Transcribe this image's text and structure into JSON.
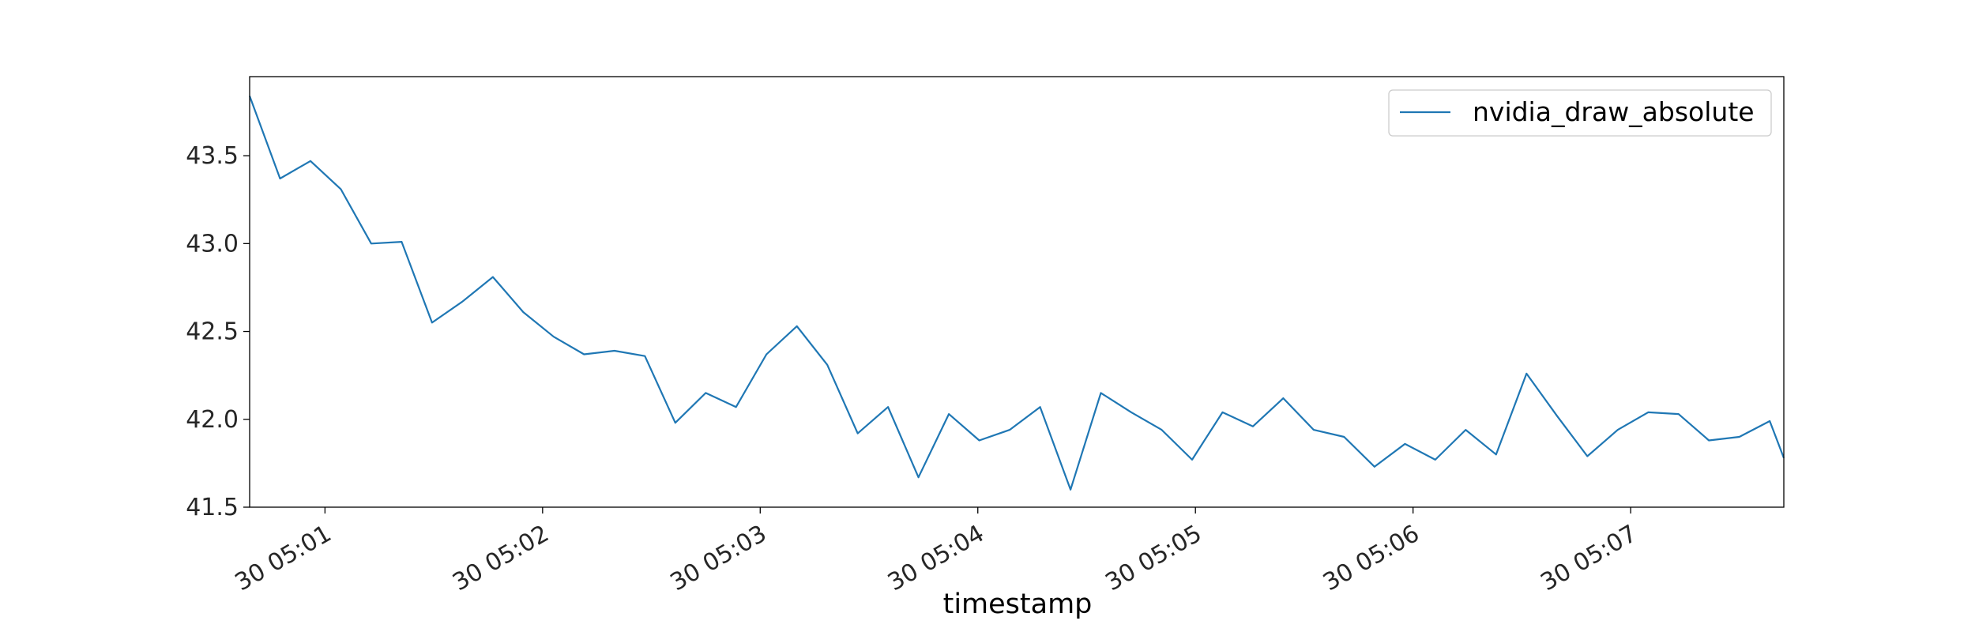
{
  "chart_data": {
    "type": "line",
    "title": "",
    "xlabel": "timestamp",
    "ylabel": "",
    "grid": false,
    "legend_position": "top-right",
    "x_tick_labels": [
      "30 05:01",
      "30 05:02",
      "30 05:03",
      "30 05:04",
      "30 05:05",
      "30 05:06",
      "30 05:07"
    ],
    "y_ticks": [
      "41.5",
      "42.0",
      "42.5",
      "43.0",
      "43.5"
    ],
    "ylim": [
      41.5,
      43.95
    ],
    "xlim_minutes": [
      0.0,
      7.05
    ],
    "series": [
      {
        "name": "nvidia_draw_absolute",
        "color": "#1f77b4",
        "x_minutes": [
          0.0,
          0.1397,
          0.2794,
          0.4191,
          0.5588,
          0.6985,
          0.8382,
          0.9779,
          1.1176,
          1.2574,
          1.3971,
          1.5368,
          1.6765,
          1.8162,
          1.9559,
          2.0956,
          2.2353,
          2.375,
          2.5147,
          2.6544,
          2.7941,
          2.9338,
          3.0735,
          3.2132,
          3.3529,
          3.4926,
          3.6324,
          3.7721,
          3.9118,
          4.0515,
          4.1912,
          4.3309,
          4.4706,
          4.6103,
          4.75,
          4.8897,
          5.0294,
          5.1691,
          5.3088,
          5.4485,
          5.5882,
          5.7279,
          5.8676,
          6.0074,
          6.1471,
          6.2868,
          6.4265,
          6.5662,
          6.7059,
          6.8456,
          6.9853,
          7.05
        ],
        "values": [
          43.84,
          43.37,
          43.47,
          43.31,
          43.0,
          43.01,
          42.55,
          42.67,
          42.81,
          42.61,
          42.47,
          42.37,
          42.39,
          42.36,
          41.98,
          42.15,
          42.07,
          42.37,
          42.53,
          42.31,
          41.92,
          42.07,
          41.67,
          42.03,
          41.88,
          41.94,
          42.07,
          41.6,
          42.15,
          42.04,
          41.94,
          41.77,
          42.04,
          41.96,
          42.12,
          41.94,
          41.9,
          41.73,
          41.86,
          41.77,
          41.94,
          41.8,
          42.26,
          42.02,
          41.79,
          41.94,
          42.04,
          42.03,
          41.88,
          41.9,
          41.99,
          41.78
        ]
      }
    ]
  }
}
